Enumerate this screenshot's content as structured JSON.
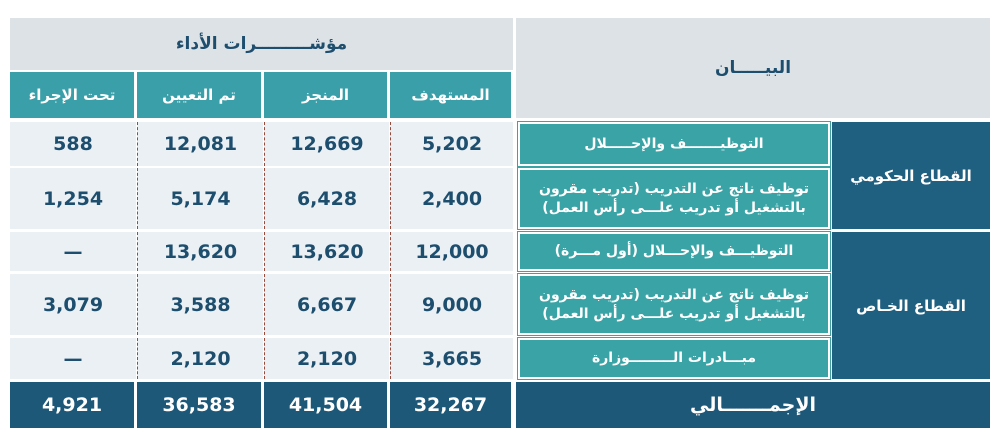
{
  "header": {
    "title": "مؤشـــــــــرات الأداء",
    "statement": "البيـــــان",
    "columns": [
      "المستهدف",
      "المنجز",
      "تم التعيين",
      "تحت الإجراء"
    ]
  },
  "sectors": [
    {
      "name": "القطاع الحكومي",
      "items": [
        {
          "label": [
            "التوظيـــــــف والإحـــــلال"
          ],
          "values": [
            "5,202",
            "12,669",
            "12,081",
            "588"
          ]
        },
        {
          "label": [
            "توظيف ناتج  عن التدريب (تدريب مقرون",
            "بالتشغيل أو تدريب علـــى رأس العمل)"
          ],
          "values": [
            "2,400",
            "6,428",
            "5,174",
            "1,254"
          ]
        }
      ]
    },
    {
      "name": "القطاع الخـاص",
      "items": [
        {
          "label": [
            "التوظيـــف والإحـــلال (أول مـــرة)"
          ],
          "values": [
            "12,000",
            "13,620",
            "13,620",
            "—"
          ]
        },
        {
          "label": [
            "توظيف ناتج  عن التدريب (تدريب مقرون",
            "بالتشغيل أو تدريب علـــى رأس العمل)"
          ],
          "values": [
            "9,000",
            "6,667",
            "3,588",
            "3,079"
          ]
        },
        {
          "label": [
            "مبـــادرات الـــــــــوزارة"
          ],
          "values": [
            "3,665",
            "2,120",
            "2,120",
            "—"
          ]
        }
      ]
    }
  ],
  "total": {
    "label": "الإجمـــــــالي",
    "values": [
      "32,267",
      "41,504",
      "36,583",
      "4,921"
    ]
  }
}
